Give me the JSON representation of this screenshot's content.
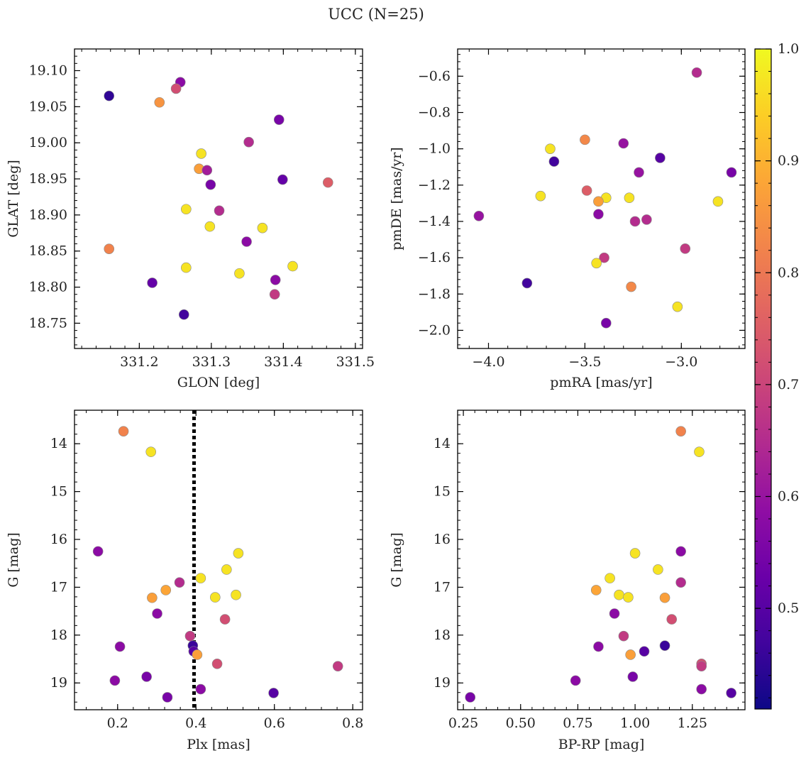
{
  "figure": {
    "title": "UCC (N=25)"
  },
  "colorbar": {
    "colormap": "plasma",
    "range": [
      0.41,
      1.0
    ],
    "tick_labels": [
      "0.5",
      "0.6",
      "0.7",
      "0.8",
      "0.9",
      "1.0"
    ],
    "ticks": [
      0.5,
      0.6,
      0.7,
      0.8,
      0.9,
      1.0
    ]
  },
  "chart_data": [
    {
      "id": "glon-glat",
      "type": "scatter",
      "xlabel": "GLON [deg]",
      "ylabel": "GLAT [deg]",
      "xlim": [
        331.11,
        331.51
      ],
      "ylim": [
        18.715,
        19.13
      ],
      "xticks": [
        331.2,
        331.3,
        331.4,
        331.5
      ],
      "xtick_labels": [
        "331.2",
        "331.3",
        "331.4",
        "331.5"
      ],
      "yticks": [
        18.75,
        18.8,
        18.85,
        18.9,
        18.95,
        19.0,
        19.05,
        19.1
      ],
      "ytick_labels": [
        "18.75",
        "18.80",
        "18.85",
        "18.90",
        "18.95",
        "19.00",
        "19.05",
        "19.10"
      ],
      "points": [
        {
          "x": 331.158,
          "y": 19.065,
          "c": 0.45
        },
        {
          "x": 331.257,
          "y": 19.084,
          "c": 0.58
        },
        {
          "x": 331.251,
          "y": 19.075,
          "c": 0.72
        },
        {
          "x": 331.228,
          "y": 19.056,
          "c": 0.85
        },
        {
          "x": 331.394,
          "y": 19.032,
          "c": 0.55
        },
        {
          "x": 331.352,
          "y": 19.001,
          "c": 0.65
        },
        {
          "x": 331.286,
          "y": 18.985,
          "c": 0.97
        },
        {
          "x": 331.283,
          "y": 18.964,
          "c": 0.87
        },
        {
          "x": 331.294,
          "y": 18.962,
          "c": 0.62
        },
        {
          "x": 331.399,
          "y": 18.949,
          "c": 0.52
        },
        {
          "x": 331.299,
          "y": 18.942,
          "c": 0.55
        },
        {
          "x": 331.462,
          "y": 18.945,
          "c": 0.75
        },
        {
          "x": 331.265,
          "y": 18.908,
          "c": 0.97
        },
        {
          "x": 331.311,
          "y": 18.906,
          "c": 0.65
        },
        {
          "x": 331.298,
          "y": 18.884,
          "c": 0.97
        },
        {
          "x": 331.371,
          "y": 18.882,
          "c": 0.97
        },
        {
          "x": 331.158,
          "y": 18.853,
          "c": 0.82
        },
        {
          "x": 331.349,
          "y": 18.863,
          "c": 0.58
        },
        {
          "x": 331.413,
          "y": 18.829,
          "c": 0.97
        },
        {
          "x": 331.265,
          "y": 18.827,
          "c": 0.97
        },
        {
          "x": 331.339,
          "y": 18.819,
          "c": 0.97
        },
        {
          "x": 331.389,
          "y": 18.81,
          "c": 0.58
        },
        {
          "x": 331.218,
          "y": 18.806,
          "c": 0.52
        },
        {
          "x": 331.388,
          "y": 18.79,
          "c": 0.68
        },
        {
          "x": 331.262,
          "y": 18.762,
          "c": 0.47
        }
      ]
    },
    {
      "id": "pmra-pmde",
      "type": "scatter",
      "xlabel": "pmRA [mas/yr]",
      "ylabel": "pmDE [mas/yr]",
      "xlim": [
        -4.16,
        -2.67
      ],
      "ylim": [
        -2.1,
        -0.45
      ],
      "xticks": [
        -4.0,
        -3.5,
        -3.0
      ],
      "xtick_labels": [
        "−4.0",
        "−3.5",
        "−3.0"
      ],
      "yticks": [
        -2.0,
        -1.8,
        -1.6,
        -1.4,
        -1.2,
        -1.0,
        -0.8,
        -0.6
      ],
      "ytick_labels": [
        "−2.0",
        "−1.8",
        "−1.6",
        "−1.4",
        "−1.2",
        "−1.0",
        "−0.8",
        "−0.6"
      ],
      "points": [
        {
          "x": -2.92,
          "y": -0.58,
          "c": 0.65
        },
        {
          "x": -3.5,
          "y": -0.95,
          "c": 0.83
        },
        {
          "x": -3.3,
          "y": -0.97,
          "c": 0.6
        },
        {
          "x": -3.68,
          "y": -1.0,
          "c": 0.97
        },
        {
          "x": -3.11,
          "y": -1.05,
          "c": 0.5
        },
        {
          "x": -3.66,
          "y": -1.07,
          "c": 0.47
        },
        {
          "x": -3.22,
          "y": -1.13,
          "c": 0.6
        },
        {
          "x": -2.74,
          "y": -1.13,
          "c": 0.55
        },
        {
          "x": -3.49,
          "y": -1.23,
          "c": 0.75
        },
        {
          "x": -3.73,
          "y": -1.26,
          "c": 0.97
        },
        {
          "x": -3.39,
          "y": -1.27,
          "c": 0.97
        },
        {
          "x": -3.27,
          "y": -1.27,
          "c": 0.97
        },
        {
          "x": -3.43,
          "y": -1.29,
          "c": 0.87
        },
        {
          "x": -2.81,
          "y": -1.29,
          "c": 0.97
        },
        {
          "x": -4.05,
          "y": -1.37,
          "c": 0.6
        },
        {
          "x": -3.43,
          "y": -1.36,
          "c": 0.58
        },
        {
          "x": -3.24,
          "y": -1.4,
          "c": 0.65
        },
        {
          "x": -3.18,
          "y": -1.39,
          "c": 0.65
        },
        {
          "x": -2.98,
          "y": -1.55,
          "c": 0.68
        },
        {
          "x": -3.4,
          "y": -1.6,
          "c": 0.68
        },
        {
          "x": -3.44,
          "y": -1.63,
          "c": 0.97
        },
        {
          "x": -3.8,
          "y": -1.74,
          "c": 0.47
        },
        {
          "x": -3.26,
          "y": -1.76,
          "c": 0.83
        },
        {
          "x": -3.02,
          "y": -1.87,
          "c": 0.97
        },
        {
          "x": -3.39,
          "y": -1.96,
          "c": 0.55
        }
      ]
    },
    {
      "id": "plx-g",
      "type": "scatter",
      "xlabel": "Plx [mas]",
      "ylabel": "G [mag]",
      "xlim": [
        0.09,
        0.825
      ],
      "ylim": [
        19.56,
        13.3
      ],
      "y_inverted": true,
      "vline": 0.395,
      "xticks": [
        0.2,
        0.4,
        0.6,
        0.8
      ],
      "xtick_labels": [
        "0.2",
        "0.4",
        "0.6",
        "0.8"
      ],
      "yticks": [
        14,
        15,
        16,
        17,
        18,
        19
      ],
      "ytick_labels": [
        "14",
        "15",
        "16",
        "17",
        "18",
        "19"
      ],
      "points": [
        {
          "x": 0.215,
          "y": 13.74,
          "c": 0.82
        },
        {
          "x": 0.285,
          "y": 14.17,
          "c": 0.97
        },
        {
          "x": 0.15,
          "y": 16.25,
          "c": 0.58
        },
        {
          "x": 0.508,
          "y": 16.29,
          "c": 0.97
        },
        {
          "x": 0.478,
          "y": 16.63,
          "c": 0.97
        },
        {
          "x": 0.412,
          "y": 16.81,
          "c": 0.97
        },
        {
          "x": 0.358,
          "y": 16.9,
          "c": 0.65
        },
        {
          "x": 0.323,
          "y": 17.06,
          "c": 0.88
        },
        {
          "x": 0.502,
          "y": 17.16,
          "c": 0.97
        },
        {
          "x": 0.449,
          "y": 17.21,
          "c": 0.97
        },
        {
          "x": 0.288,
          "y": 17.22,
          "c": 0.87
        },
        {
          "x": 0.301,
          "y": 17.55,
          "c": 0.58
        },
        {
          "x": 0.474,
          "y": 17.67,
          "c": 0.72
        },
        {
          "x": 0.385,
          "y": 18.02,
          "c": 0.68
        },
        {
          "x": 0.392,
          "y": 18.22,
          "c": 0.46
        },
        {
          "x": 0.206,
          "y": 18.24,
          "c": 0.58
        },
        {
          "x": 0.394,
          "y": 18.34,
          "c": 0.5
        },
        {
          "x": 0.403,
          "y": 18.41,
          "c": 0.87
        },
        {
          "x": 0.454,
          "y": 18.6,
          "c": 0.72
        },
        {
          "x": 0.762,
          "y": 18.65,
          "c": 0.68
        },
        {
          "x": 0.274,
          "y": 18.87,
          "c": 0.55
        },
        {
          "x": 0.193,
          "y": 18.95,
          "c": 0.58
        },
        {
          "x": 0.412,
          "y": 19.13,
          "c": 0.58
        },
        {
          "x": 0.598,
          "y": 19.21,
          "c": 0.5
        },
        {
          "x": 0.327,
          "y": 19.3,
          "c": 0.55
        }
      ]
    },
    {
      "id": "bprp-g",
      "type": "scatter",
      "xlabel": "BP-RP [mag]",
      "ylabel": "G [mag]",
      "xlim": [
        0.225,
        1.48
      ],
      "ylim": [
        19.56,
        13.3
      ],
      "y_inverted": true,
      "xticks": [
        0.25,
        0.5,
        0.75,
        1.0,
        1.25
      ],
      "xtick_labels": [
        "0.25",
        "0.50",
        "0.75",
        "1.00",
        "1.25"
      ],
      "yticks": [
        14,
        15,
        16,
        17,
        18,
        19
      ],
      "ytick_labels": [
        "14",
        "15",
        "16",
        "17",
        "18",
        "19"
      ],
      "points": [
        {
          "x": 1.2,
          "y": 13.74,
          "c": 0.82
        },
        {
          "x": 1.28,
          "y": 14.17,
          "c": 0.97
        },
        {
          "x": 1.2,
          "y": 16.25,
          "c": 0.58
        },
        {
          "x": 1.0,
          "y": 16.29,
          "c": 0.97
        },
        {
          "x": 1.1,
          "y": 16.63,
          "c": 0.97
        },
        {
          "x": 0.89,
          "y": 16.81,
          "c": 0.97
        },
        {
          "x": 1.2,
          "y": 16.9,
          "c": 0.65
        },
        {
          "x": 0.83,
          "y": 17.06,
          "c": 0.88
        },
        {
          "x": 0.93,
          "y": 17.16,
          "c": 0.97
        },
        {
          "x": 0.97,
          "y": 17.21,
          "c": 0.97
        },
        {
          "x": 1.13,
          "y": 17.22,
          "c": 0.87
        },
        {
          "x": 0.91,
          "y": 17.55,
          "c": 0.58
        },
        {
          "x": 1.16,
          "y": 17.67,
          "c": 0.72
        },
        {
          "x": 0.95,
          "y": 18.02,
          "c": 0.68
        },
        {
          "x": 1.13,
          "y": 18.22,
          "c": 0.46
        },
        {
          "x": 0.84,
          "y": 18.24,
          "c": 0.58
        },
        {
          "x": 1.04,
          "y": 18.34,
          "c": 0.5
        },
        {
          "x": 0.98,
          "y": 18.41,
          "c": 0.87
        },
        {
          "x": 1.29,
          "y": 18.6,
          "c": 0.72
        },
        {
          "x": 1.29,
          "y": 18.65,
          "c": 0.68
        },
        {
          "x": 0.99,
          "y": 18.87,
          "c": 0.55
        },
        {
          "x": 0.74,
          "y": 18.95,
          "c": 0.58
        },
        {
          "x": 1.29,
          "y": 19.13,
          "c": 0.58
        },
        {
          "x": 1.42,
          "y": 19.21,
          "c": 0.5
        },
        {
          "x": 0.28,
          "y": 19.3,
          "c": 0.55
        }
      ]
    }
  ]
}
